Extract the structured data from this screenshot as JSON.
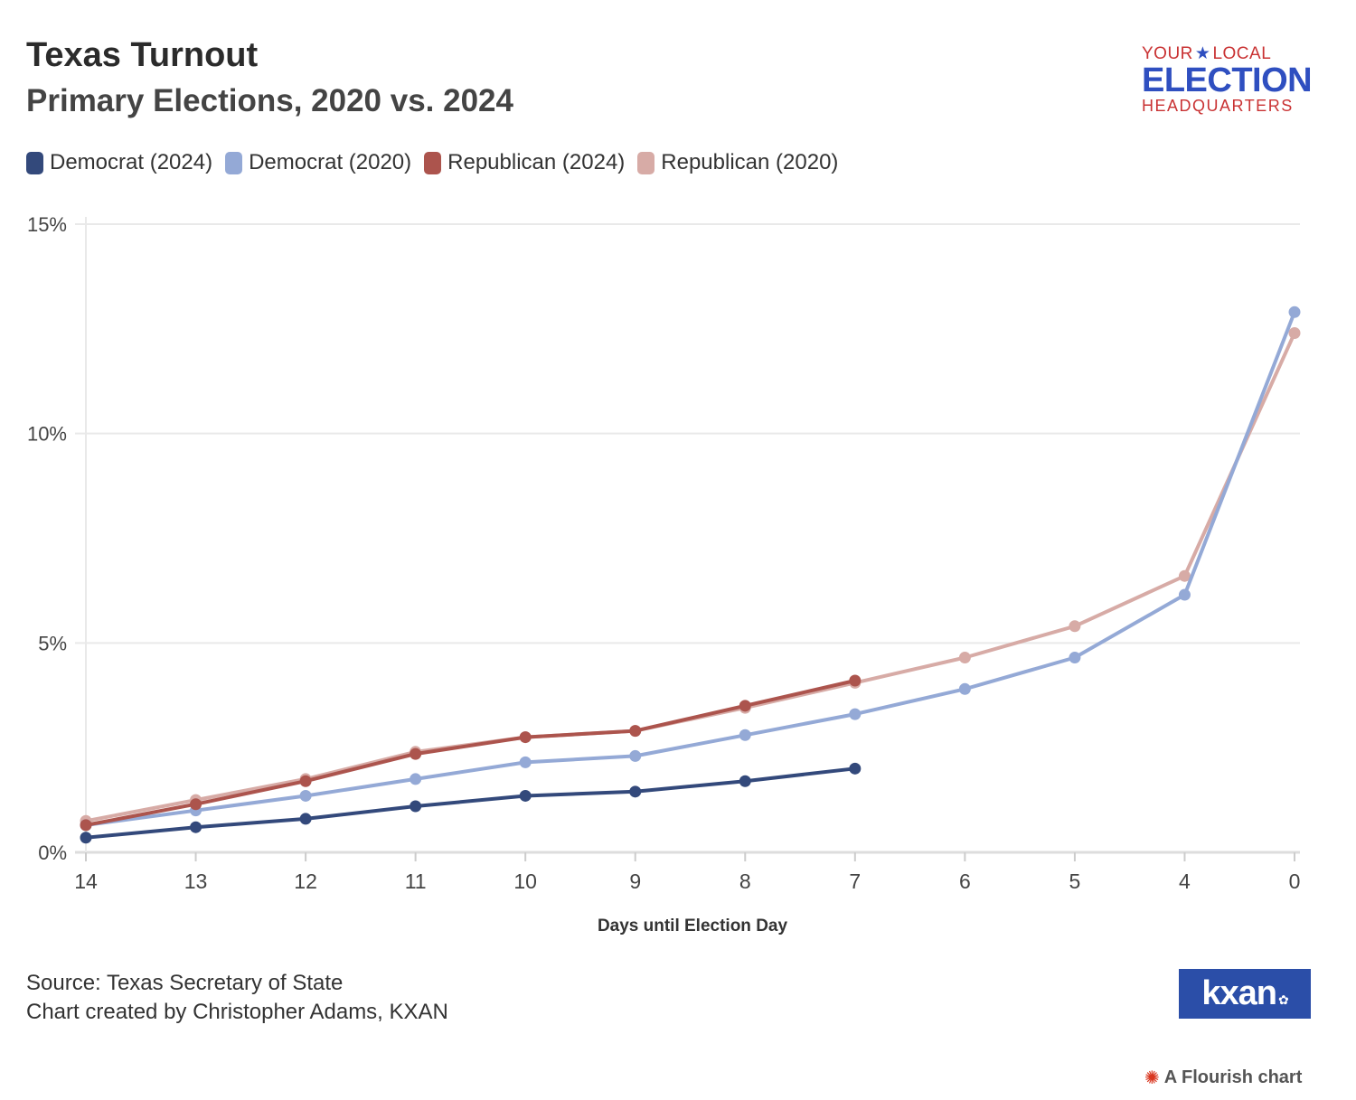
{
  "header": {
    "title": "Texas Turnout",
    "subtitle": "Primary Elections, 2020 vs. 2024"
  },
  "logo": {
    "line1_left": "YOUR",
    "line1_right": "LOCAL",
    "line2": "ELECTION",
    "line3": "HEADQUARTERS",
    "star_icon": "star-icon"
  },
  "legend": [
    {
      "label": "Democrat (2024)",
      "color": "#33497b"
    },
    {
      "label": "Democrat (2020)",
      "color": "#94a9d6"
    },
    {
      "label": "Republican (2024)",
      "color": "#ac544d"
    },
    {
      "label": "Republican (2020)",
      "color": "#d7aba6"
    }
  ],
  "footer": {
    "source": "Source: Texas Secretary of State",
    "credit": "Chart created by Christopher Adams, KXAN",
    "brand_logo": "kxan",
    "brand_icon": "peacock-icon",
    "flourish_label": "A Flourish chart",
    "flourish_icon": "flourish-icon"
  },
  "chart_data": {
    "type": "line",
    "xlabel": "Days until Election Day",
    "ylabel": "",
    "categories": [
      "14",
      "13",
      "12",
      "11",
      "10",
      "9",
      "8",
      "7",
      "6",
      "5",
      "4",
      "0"
    ],
    "ylim": [
      0,
      15
    ],
    "yticks": [
      0,
      5,
      10,
      15
    ],
    "ytick_labels": [
      "0%",
      "5%",
      "10%",
      "15%"
    ],
    "grid": true,
    "legend_position": "top-left",
    "series": [
      {
        "name": "Republican (2020)",
        "color": "#d7aba6",
        "values": [
          0.75,
          1.25,
          1.75,
          2.4,
          2.75,
          2.9,
          3.45,
          4.05,
          4.65,
          5.4,
          6.6,
          12.4
        ]
      },
      {
        "name": "Democrat (2020)",
        "color": "#94a9d6",
        "values": [
          0.65,
          1.0,
          1.35,
          1.75,
          2.15,
          2.3,
          2.8,
          3.3,
          3.9,
          4.65,
          6.15,
          12.9
        ]
      },
      {
        "name": "Republican (2024)",
        "color": "#ac544d",
        "values": [
          0.65,
          1.15,
          1.7,
          2.35,
          2.75,
          2.9,
          3.5,
          4.1,
          null,
          null,
          null,
          null
        ]
      },
      {
        "name": "Democrat (2024)",
        "color": "#33497b",
        "values": [
          0.35,
          0.6,
          0.8,
          1.1,
          1.35,
          1.45,
          1.7,
          2.0,
          null,
          null,
          null,
          null
        ]
      }
    ]
  }
}
